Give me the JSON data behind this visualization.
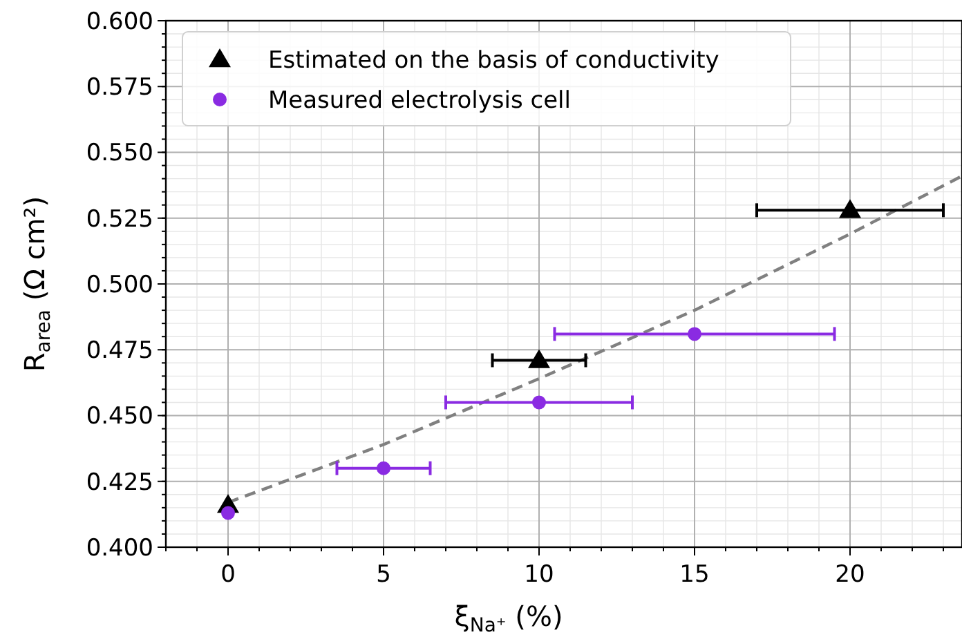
{
  "chart_data": {
    "type": "scatter",
    "xlabel": "ξ$_{Na⁺}$ (%)",
    "ylabel": "R$_{area}$ (Ω cm²)",
    "xlim": [
      -2,
      23.6
    ],
    "ylim": [
      0.4,
      0.6
    ],
    "xticks": [
      0,
      5,
      10,
      15,
      20
    ],
    "yticks": [
      {
        "value": 0.4,
        "label": "0.400"
      },
      {
        "value": 0.425,
        "label": "0.425"
      },
      {
        "value": 0.45,
        "label": "0.450"
      },
      {
        "value": 0.475,
        "label": "0.475"
      },
      {
        "value": 0.5,
        "label": "0.500"
      },
      {
        "value": 0.525,
        "label": "0.525"
      },
      {
        "value": 0.55,
        "label": "0.550"
      },
      {
        "value": 0.575,
        "label": "0.575"
      },
      {
        "value": 0.6,
        "label": "0.600"
      }
    ],
    "grid": true,
    "legend": "top left",
    "series": [
      {
        "type": "line",
        "color": "#808080",
        "line_style": "dashed",
        "marker": "none",
        "x": [
          0,
          5,
          10,
          15,
          20,
          23.6
        ],
        "values": [
          0.417,
          0.439,
          0.464,
          0.49,
          0.519,
          0.541
        ]
      },
      {
        "name": "Estimated on the basis of conductivity",
        "color": "#000000",
        "marker": "triangle",
        "x": [
          0,
          10,
          20
        ],
        "values": [
          0.416,
          0.471,
          0.528
        ],
        "xerrors": [
          null,
          [
            8.5,
            11.5
          ],
          [
            17,
            23
          ]
        ]
      },
      {
        "name": "Measured electrolysis cell",
        "color": "#8a2be2",
        "marker": "circle",
        "x": [
          0,
          5,
          10,
          15
        ],
        "values": [
          0.413,
          0.43,
          0.455,
          0.481
        ],
        "xerrors": [
          null,
          [
            3.5,
            6.5
          ],
          [
            7,
            13
          ],
          [
            10.5,
            19.5
          ]
        ]
      }
    ]
  }
}
